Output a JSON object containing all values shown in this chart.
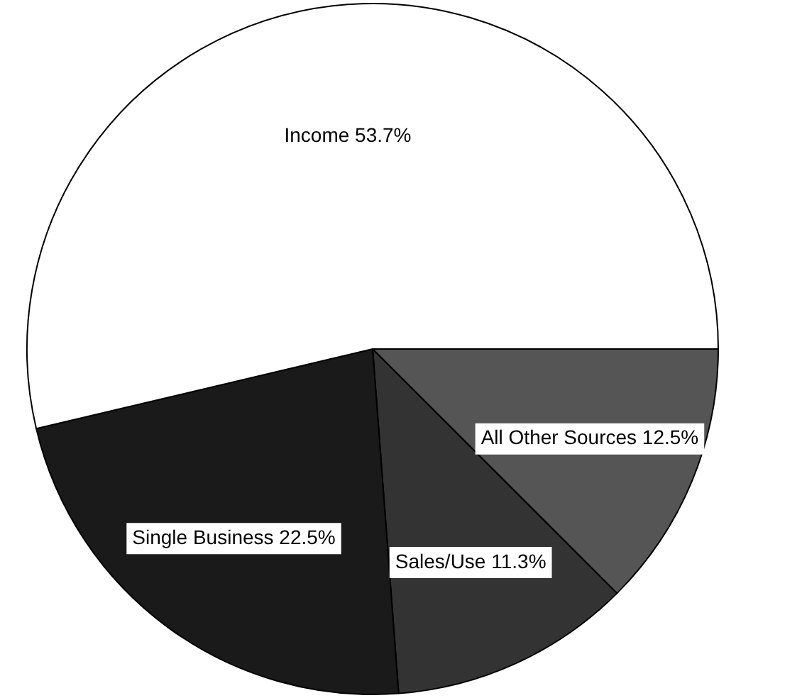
{
  "chart_data": {
    "type": "pie",
    "categories": [
      "All Other Sources",
      "Sales/Use",
      "Single Business",
      "Income"
    ],
    "values": [
      12.5,
      11.3,
      22.5,
      53.7
    ],
    "colors": [
      "#555555",
      "#333333",
      "#1a1a1a",
      "#ffffff"
    ],
    "value_labels": [
      "12.5%",
      "11.3%",
      "22.5%",
      "53.7%"
    ],
    "legend": false
  }
}
